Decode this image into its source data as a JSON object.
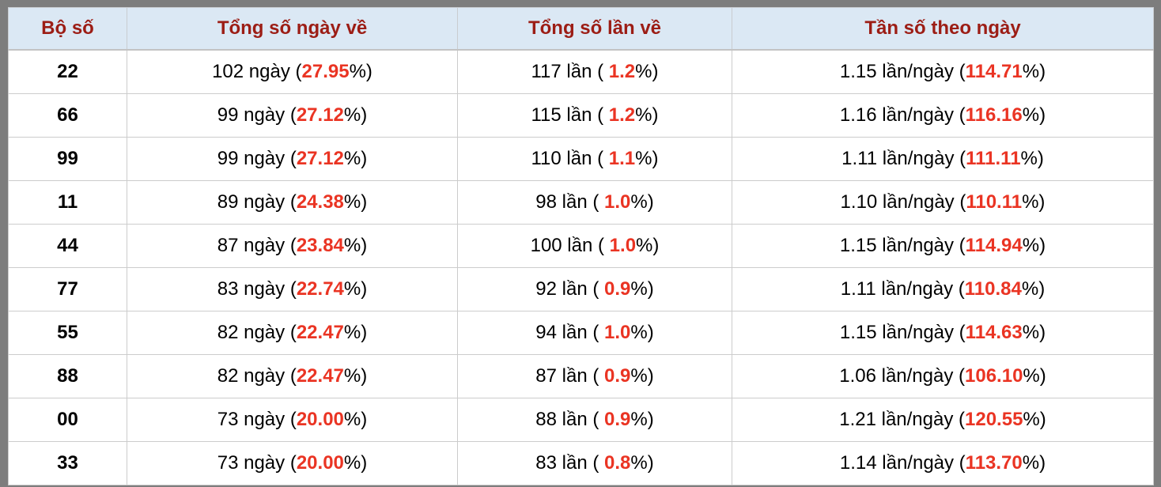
{
  "page": {
    "background_color": "#7d7d7d"
  },
  "colors": {
    "header_background": "#dbe8f4",
    "header_text": "#9c1d15",
    "accent_red": "#ea3423",
    "body_text": "#000000",
    "cell_border": "#cccccc"
  },
  "table": {
    "columns": [
      "Bộ số",
      "Tổng số ngày về",
      "Tổng số lần về",
      "Tần số theo ngày"
    ],
    "rows": [
      {
        "pair": "22",
        "days": {
          "pre": "102 ngày (",
          "red": "27.95",
          "post": "%)"
        },
        "times": {
          "pre": "117 lần ( ",
          "red": "1.2",
          "post": "%)"
        },
        "freq": {
          "pre": "1.15 lần/ngày (",
          "red": "114.71",
          "post": "%)"
        }
      },
      {
        "pair": "66",
        "days": {
          "pre": "99 ngày (",
          "red": "27.12",
          "post": "%)"
        },
        "times": {
          "pre": "115 lần ( ",
          "red": "1.2",
          "post": "%)"
        },
        "freq": {
          "pre": "1.16 lần/ngày (",
          "red": "116.16",
          "post": "%)"
        }
      },
      {
        "pair": "99",
        "days": {
          "pre": "99 ngày (",
          "red": "27.12",
          "post": "%)"
        },
        "times": {
          "pre": "110 lần ( ",
          "red": "1.1",
          "post": "%)"
        },
        "freq": {
          "pre": "1.11 lần/ngày (",
          "red": "111.11",
          "post": "%)"
        }
      },
      {
        "pair": "11",
        "days": {
          "pre": "89 ngày (",
          "red": "24.38",
          "post": "%)"
        },
        "times": {
          "pre": "98 lần ( ",
          "red": "1.0",
          "post": "%)"
        },
        "freq": {
          "pre": "1.10 lần/ngày (",
          "red": "110.11",
          "post": "%)"
        }
      },
      {
        "pair": "44",
        "days": {
          "pre": "87 ngày (",
          "red": "23.84",
          "post": "%)"
        },
        "times": {
          "pre": "100 lần ( ",
          "red": "1.0",
          "post": "%)"
        },
        "freq": {
          "pre": "1.15 lần/ngày (",
          "red": "114.94",
          "post": "%)"
        }
      },
      {
        "pair": "77",
        "days": {
          "pre": "83 ngày (",
          "red": "22.74",
          "post": "%)"
        },
        "times": {
          "pre": "92 lần ( ",
          "red": "0.9",
          "post": "%)"
        },
        "freq": {
          "pre": "1.11 lần/ngày (",
          "red": "110.84",
          "post": "%)"
        }
      },
      {
        "pair": "55",
        "days": {
          "pre": "82 ngày (",
          "red": "22.47",
          "post": "%)"
        },
        "times": {
          "pre": "94 lần ( ",
          "red": "1.0",
          "post": "%)"
        },
        "freq": {
          "pre": "1.15 lần/ngày (",
          "red": "114.63",
          "post": "%)"
        }
      },
      {
        "pair": "88",
        "days": {
          "pre": "82 ngày (",
          "red": "22.47",
          "post": "%)"
        },
        "times": {
          "pre": "87 lần ( ",
          "red": "0.9",
          "post": "%)"
        },
        "freq": {
          "pre": "1.06 lần/ngày (",
          "red": "106.10",
          "post": "%)"
        }
      },
      {
        "pair": "00",
        "days": {
          "pre": "73 ngày (",
          "red": "20.00",
          "post": "%)"
        },
        "times": {
          "pre": "88 lần ( ",
          "red": "0.9",
          "post": "%)"
        },
        "freq": {
          "pre": "1.21 lần/ngày (",
          "red": "120.55",
          "post": "%)"
        }
      },
      {
        "pair": "33",
        "days": {
          "pre": "73 ngày (",
          "red": "20.00",
          "post": "%)"
        },
        "times": {
          "pre": "83 lần ( ",
          "red": "0.8",
          "post": "%)"
        },
        "freq": {
          "pre": "1.14 lần/ngày (",
          "red": "113.70",
          "post": "%)"
        }
      }
    ]
  }
}
